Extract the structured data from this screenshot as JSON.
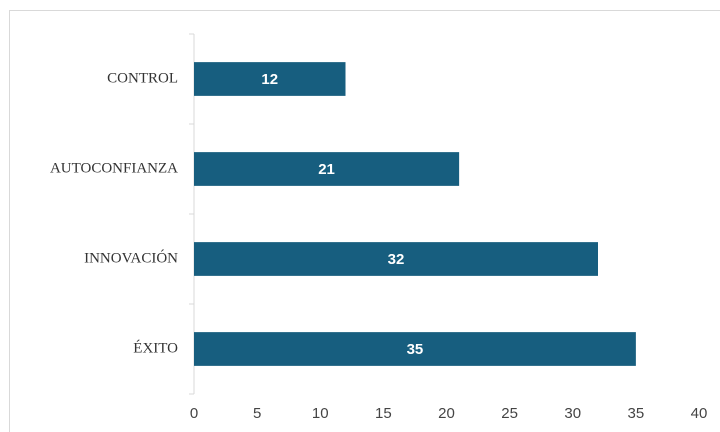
{
  "chart_data": {
    "type": "bar",
    "orientation": "horizontal",
    "categories": [
      "CONTROL",
      "AUTOCONFIANZA",
      "INNOVACIÓN",
      "ÉXITO"
    ],
    "values": [
      12,
      21,
      32,
      35
    ],
    "color": "#175e7f",
    "xlim": [
      0,
      40
    ],
    "xticks": [
      0,
      5,
      10,
      15,
      20,
      25,
      30,
      35,
      40
    ],
    "grid": false
  }
}
